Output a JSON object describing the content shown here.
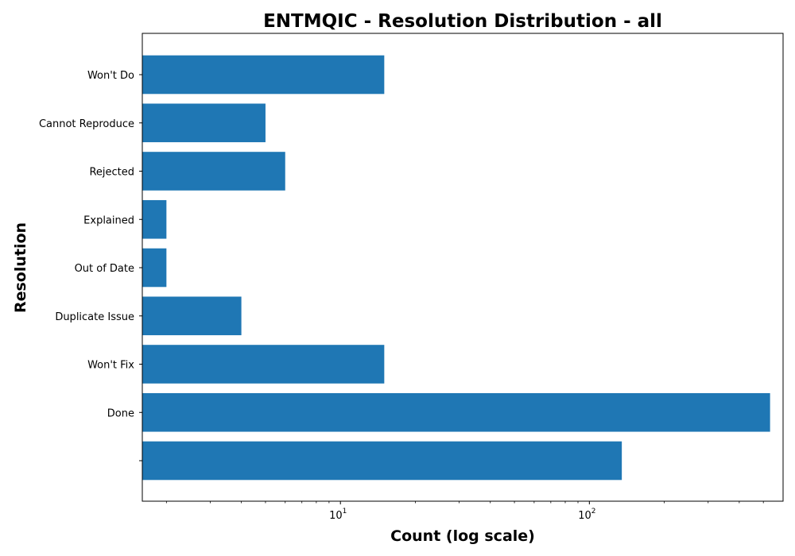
{
  "chart_data": {
    "type": "bar",
    "orientation": "horizontal",
    "title": "ENTMQIC - Resolution Distribution - all",
    "xlabel": "Count (log scale)",
    "ylabel": "Resolution",
    "x_scale": "log",
    "xlim": [
      1.6,
      600
    ],
    "x_major_ticks": [
      {
        "value": 10,
        "base": "10",
        "exp": "1"
      },
      {
        "value": 100,
        "base": "10",
        "exp": "2"
      }
    ],
    "grid": false,
    "legend": "none",
    "bar_color": "#1f77b4",
    "categories": [
      "",
      "Done",
      "Won't Fix",
      "Duplicate Issue",
      "Out of Date",
      "Explained",
      "Rejected",
      "Cannot Reproduce",
      "Won't Do"
    ],
    "values": [
      135,
      532,
      15,
      4,
      2,
      2,
      6,
      5,
      15
    ]
  }
}
